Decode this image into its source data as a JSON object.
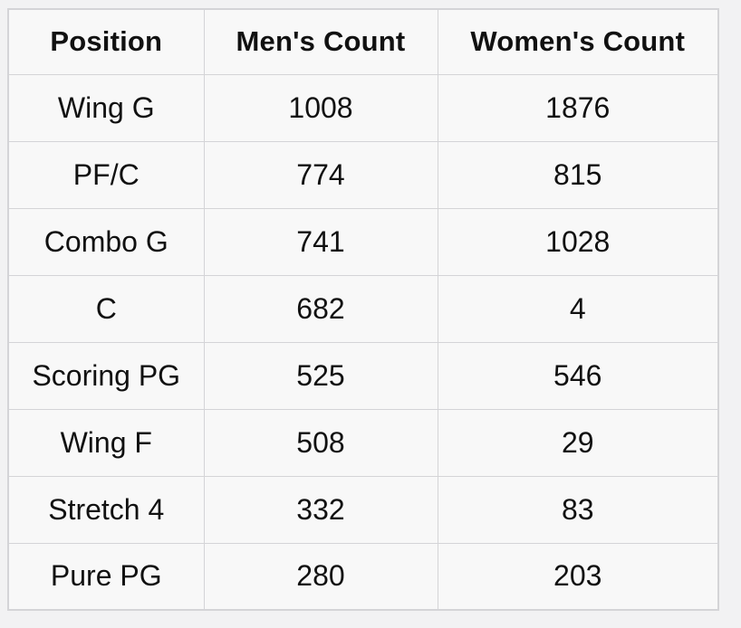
{
  "page": {
    "background": "#f2f2f3"
  },
  "table": {
    "columns": [
      "Position",
      "Men's Count",
      "Women's Count"
    ],
    "row_keys": [
      "position",
      "men",
      "women"
    ],
    "rows": [
      {
        "position": "Wing G",
        "men": "1008",
        "women": "1876"
      },
      {
        "position": "PF/C",
        "men": "774",
        "women": "815"
      },
      {
        "position": "Combo G",
        "men": "741",
        "women": "1028"
      },
      {
        "position": "C",
        "men": "682",
        "women": "4"
      },
      {
        "position": "Scoring PG",
        "men": "525",
        "women": "546"
      },
      {
        "position": "Wing F",
        "men": "508",
        "women": "29"
      },
      {
        "position": "Stretch 4",
        "men": "332",
        "women": "83"
      },
      {
        "position": "Pure PG",
        "men": "280",
        "women": "203"
      }
    ],
    "colors": {
      "cell_bg": "#f8f8f8",
      "border": "#d4d4d7",
      "text": "#111111",
      "page_bg": "#f2f2f3"
    }
  },
  "chart_data": {
    "type": "table",
    "title": "",
    "columns": [
      "Position",
      "Men's Count",
      "Women's Count"
    ],
    "categories": [
      "Wing G",
      "PF/C",
      "Combo G",
      "C",
      "Scoring PG",
      "Wing F",
      "Stretch 4",
      "Pure PG"
    ],
    "series": [
      {
        "name": "Men's Count",
        "values": [
          1008,
          774,
          741,
          682,
          525,
          508,
          332,
          280
        ]
      },
      {
        "name": "Women's Count",
        "values": [
          1876,
          815,
          1028,
          4,
          546,
          29,
          83,
          203
        ]
      }
    ],
    "layout_hints": {
      "text_align": "center",
      "header_bold": true,
      "grid": "full-borders"
    }
  }
}
